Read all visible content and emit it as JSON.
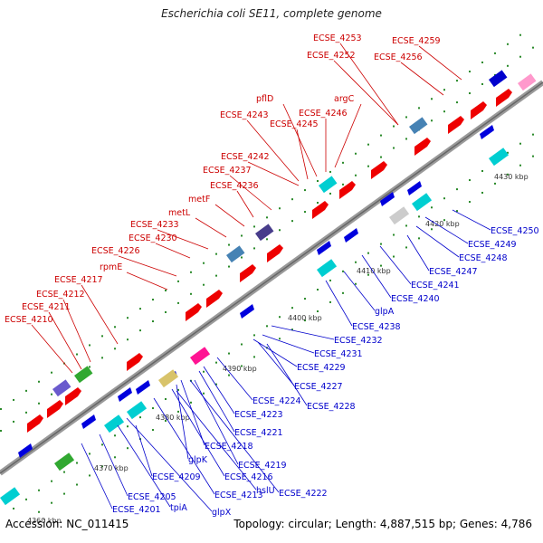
{
  "title": "Escherichia coli SE11, complete genome",
  "footer": {
    "accession": "Accession: NC_011415",
    "topology": "Topology: circular; Length: 4,887,515 bp; Genes: 4,786"
  },
  "colors": {
    "forward_gene": "#ee0000",
    "reverse_gene": "#0000dd",
    "backbone": "#888888",
    "forward_label": "#cc0000",
    "reverse_label": "#0000cc"
  },
  "kbp_ticks": [
    "4360 kbp",
    "4370 kbp",
    "4380 kbp",
    "4390 kbp",
    "4400 kbp",
    "4410 kbp",
    "4420 kbp",
    "4430 kbp"
  ],
  "forward_labels": [
    "ECSE_4253",
    "ECSE_4252",
    "ECSE_4259",
    "ECSE_4256",
    "argC",
    "pflD",
    "ECSE_4246",
    "ECSE_4243",
    "ECSE_4245",
    "ECSE_4242",
    "ECSE_4237",
    "ECSE_4236",
    "metF",
    "metL",
    "ECSE_4233",
    "ECSE_4230",
    "ECSE_4226",
    "rpmE",
    "ECSE_4217",
    "ECSE_4212",
    "ECSE_4211",
    "ECSE_4210"
  ],
  "reverse_labels": [
    "ECSE_4250",
    "ECSE_4249",
    "ECSE_4248",
    "ECSE_4247",
    "ECSE_4241",
    "ECSE_4240",
    "glpA",
    "ECSE_4238",
    "ECSE_4232",
    "ECSE_4231",
    "ECSE_4229",
    "ECSE_4227",
    "ECSE_4228",
    "ECSE_4224",
    "ECSE_4223",
    "ECSE_4221",
    "ECSE_4218",
    "glpK",
    "ECSE_4219",
    "ECSE_4216",
    "hslU",
    "ECSE_4222",
    "ECSE_4209",
    "ECSE_4213",
    "ECSE_4205",
    "ECSE_4201",
    "tpiA",
    "glpX"
  ]
}
